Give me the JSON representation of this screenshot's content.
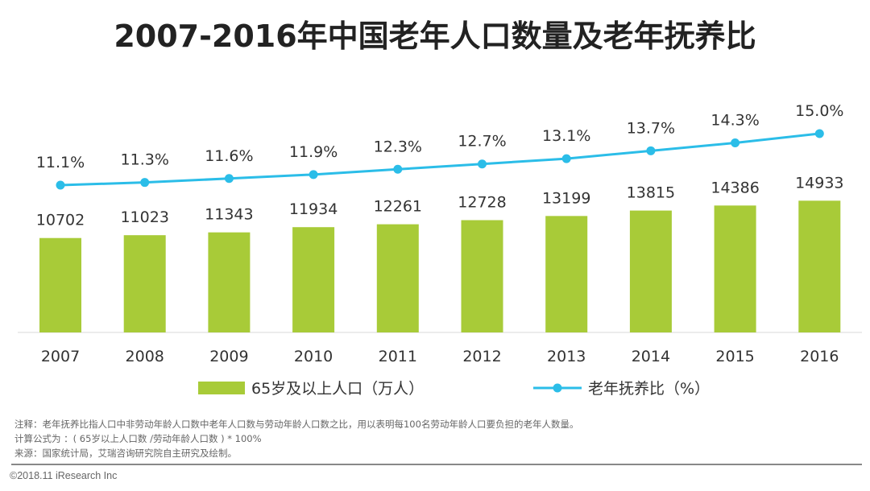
{
  "title": "2007-2016年中国老年人口数量及老年抚养比",
  "chart_data": {
    "type": "bar+line",
    "title": "2007-2016年中国老年人口数量及老年抚养比",
    "categories": [
      "2007",
      "2008",
      "2009",
      "2010",
      "2011",
      "2012",
      "2013",
      "2014",
      "2015",
      "2016"
    ],
    "series": [
      {
        "name": "65岁及以上人口（万人）",
        "type": "bar",
        "color": "#a8cb38",
        "values": [
          10702,
          11023,
          11343,
          11934,
          12261,
          12728,
          13199,
          13815,
          14386,
          14933
        ]
      },
      {
        "name": "老年抚养比（%）",
        "type": "line",
        "color": "#2bbde8",
        "values": [
          11.1,
          11.3,
          11.6,
          11.9,
          12.3,
          12.7,
          13.1,
          13.7,
          14.3,
          15.0
        ],
        "labels": [
          "11.1%",
          "11.3%",
          "11.6%",
          "11.9%",
          "12.3%",
          "12.7%",
          "13.1%",
          "13.7%",
          "14.3%",
          "15.0%"
        ]
      }
    ],
    "legend_position": "bottom",
    "grid": false
  },
  "notes": [
    "注释：老年抚养比指人口中非劳动年龄人口数中老年人口数与劳动年龄人口数之比，用以表明每100名劳动年龄人口要负担的老年人数量。",
    "计算公式为 ：( 65岁以上人口数 /劳动年龄人口数 ) * 100%",
    "来源：国家统计局，艾瑞咨询研究院自主研究及绘制。"
  ],
  "copyright": "©2018.11 iResearch Inc"
}
